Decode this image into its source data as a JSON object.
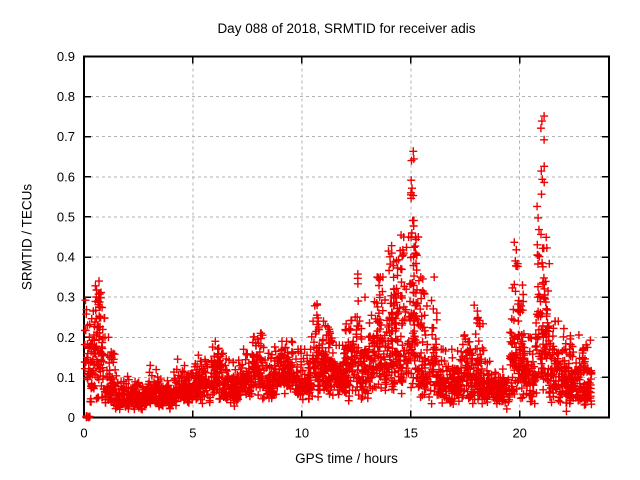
{
  "chart_data": {
    "type": "scatter",
    "title": "Day 088 of 2018, SRMTID for receiver adis",
    "xlabel": "GPS time / hours",
    "ylabel": "SRMTID / TECUs",
    "series_name": "SRMTID",
    "xlim": [
      0,
      24.1
    ],
    "ylim": [
      0,
      0.9
    ],
    "xticks": [
      {
        "v": 0,
        "label": "0"
      },
      {
        "v": 5,
        "label": "5"
      },
      {
        "v": 10,
        "label": "10"
      },
      {
        "v": 15,
        "label": "15"
      },
      {
        "v": 20,
        "label": "20"
      }
    ],
    "yticks": [
      {
        "v": 0.0,
        "label": "0"
      },
      {
        "v": 0.1,
        "label": "0.1"
      },
      {
        "v": 0.2,
        "label": "0.2"
      },
      {
        "v": 0.3,
        "label": "0.3"
      },
      {
        "v": 0.4,
        "label": "0.4"
      },
      {
        "v": 0.5,
        "label": "0.5"
      },
      {
        "v": 0.6,
        "label": "0.6"
      },
      {
        "v": 0.7,
        "label": "0.7"
      },
      {
        "v": 0.8,
        "label": "0.8"
      },
      {
        "v": 0.9,
        "label": "0.9"
      }
    ],
    "grid": {
      "show": true,
      "style": "dashed",
      "color": "#b2b2b2"
    },
    "legend": "none",
    "background": "#ffffff",
    "border_color": "#000000",
    "text_color": "#000000",
    "marker": {
      "glyph": "+",
      "color": "#ee0000",
      "size": 8,
      "stroke_width": 1.4
    },
    "n_points_approx": 2880,
    "seed": 2018088,
    "scatter_profile": {
      "description": "Envelope of the ~2880-point scatter read off the plot: per-interval log-normal bands (x0-x1 hours, median m TECU, log-sigma s, count n, cap ymax) plus discrete spike columns and a solid cluster of zero values at the origin.",
      "segments": [
        {
          "x0": 0.03,
          "x1": 0.35,
          "m": 0.12,
          "s": 0.45,
          "n": 40,
          "ymax": 0.3
        },
        {
          "x0": 0.35,
          "x1": 0.95,
          "m": 0.15,
          "s": 0.5,
          "n": 75,
          "ymax": 0.34
        },
        {
          "x0": 0.95,
          "x1": 1.45,
          "m": 0.08,
          "s": 0.4,
          "n": 60,
          "ymax": 0.2
        },
        {
          "x0": 1.45,
          "x1": 2.9,
          "m": 0.045,
          "s": 0.32,
          "n": 175,
          "ymax": 0.12
        },
        {
          "x0": 2.9,
          "x1": 3.5,
          "m": 0.06,
          "s": 0.3,
          "n": 72,
          "ymax": 0.13
        },
        {
          "x0": 3.5,
          "x1": 4.1,
          "m": 0.055,
          "s": 0.32,
          "n": 72,
          "ymax": 0.13
        },
        {
          "x0": 4.1,
          "x1": 5.0,
          "m": 0.068,
          "s": 0.3,
          "n": 108,
          "ymax": 0.15
        },
        {
          "x0": 5.0,
          "x1": 5.8,
          "m": 0.082,
          "s": 0.32,
          "n": 96,
          "ymax": 0.18
        },
        {
          "x0": 5.8,
          "x1": 6.35,
          "m": 0.095,
          "s": 0.38,
          "n": 66,
          "ymax": 0.19
        },
        {
          "x0": 6.35,
          "x1": 7.1,
          "m": 0.072,
          "s": 0.33,
          "n": 90,
          "ymax": 0.16
        },
        {
          "x0": 7.1,
          "x1": 7.75,
          "m": 0.095,
          "s": 0.3,
          "n": 78,
          "ymax": 0.17
        },
        {
          "x0": 7.75,
          "x1": 8.25,
          "m": 0.115,
          "s": 0.35,
          "n": 60,
          "ymax": 0.21
        },
        {
          "x0": 8.25,
          "x1": 8.75,
          "m": 0.085,
          "s": 0.32,
          "n": 60,
          "ymax": 0.16
        },
        {
          "x0": 8.75,
          "x1": 9.6,
          "m": 0.115,
          "s": 0.3,
          "n": 102,
          "ymax": 0.19
        },
        {
          "x0": 9.6,
          "x1": 10.45,
          "m": 0.085,
          "s": 0.35,
          "n": 102,
          "ymax": 0.17
        },
        {
          "x0": 10.45,
          "x1": 11.45,
          "m": 0.125,
          "s": 0.38,
          "n": 120,
          "ymax": 0.24
        },
        {
          "x0": 11.45,
          "x1": 11.95,
          "m": 0.095,
          "s": 0.32,
          "n": 60,
          "ymax": 0.18
        },
        {
          "x0": 11.95,
          "x1": 12.45,
          "m": 0.125,
          "s": 0.38,
          "n": 60,
          "ymax": 0.25
        },
        {
          "x0": 12.45,
          "x1": 13.15,
          "m": 0.125,
          "s": 0.38,
          "n": 84,
          "ymax": 0.3
        },
        {
          "x0": 13.15,
          "x1": 13.85,
          "m": 0.145,
          "s": 0.4,
          "n": 84,
          "ymax": 0.35
        },
        {
          "x0": 13.85,
          "x1": 14.7,
          "m": 0.18,
          "s": 0.42,
          "n": 102,
          "ymax": 0.42
        },
        {
          "x0": 14.7,
          "x1": 15.35,
          "m": 0.195,
          "s": 0.42,
          "n": 78,
          "ymax": 0.45
        },
        {
          "x0": 15.35,
          "x1": 16.2,
          "m": 0.13,
          "s": 0.45,
          "n": 102,
          "ymax": 0.35
        },
        {
          "x0": 16.2,
          "x1": 17.35,
          "m": 0.082,
          "s": 0.35,
          "n": 138,
          "ymax": 0.17
        },
        {
          "x0": 17.35,
          "x1": 18.35,
          "m": 0.1,
          "s": 0.4,
          "n": 120,
          "ymax": 0.28
        },
        {
          "x0": 18.35,
          "x1": 18.95,
          "m": 0.075,
          "s": 0.32,
          "n": 72,
          "ymax": 0.14
        },
        {
          "x0": 18.95,
          "x1": 19.55,
          "m": 0.065,
          "s": 0.35,
          "n": 72,
          "ymax": 0.13
        },
        {
          "x0": 19.55,
          "x1": 20.3,
          "m": 0.13,
          "s": 0.45,
          "n": 90,
          "ymax": 0.33
        },
        {
          "x0": 20.3,
          "x1": 20.7,
          "m": 0.1,
          "s": 0.38,
          "n": 48,
          "ymax": 0.2
        },
        {
          "x0": 20.7,
          "x1": 21.35,
          "m": 0.17,
          "s": 0.5,
          "n": 78,
          "ymax": 0.55
        },
        {
          "x0": 21.35,
          "x1": 22.1,
          "m": 0.11,
          "s": 0.4,
          "n": 90,
          "ymax": 0.24
        },
        {
          "x0": 22.1,
          "x1": 22.75,
          "m": 0.085,
          "s": 0.42,
          "n": 78,
          "ymax": 0.23
        },
        {
          "x0": 22.75,
          "x1": 23.3,
          "m": 0.075,
          "s": 0.45,
          "n": 66,
          "ymax": 0.2
        }
      ],
      "spikes": [
        {
          "x": 0.62,
          "jit": 0.18,
          "lo": 0.16,
          "hi": 0.33,
          "n": 26
        },
        {
          "x": 6.05,
          "jit": 0.15,
          "lo": 0.1,
          "hi": 0.175,
          "n": 14
        },
        {
          "x": 7.9,
          "jit": 0.15,
          "lo": 0.12,
          "hi": 0.2,
          "n": 12
        },
        {
          "x": 9.05,
          "jit": 0.2,
          "lo": 0.1,
          "hi": 0.17,
          "n": 12
        },
        {
          "x": 10.68,
          "jit": 0.1,
          "lo": 0.14,
          "hi": 0.3,
          "n": 12
        },
        {
          "x": 11.1,
          "jit": 0.2,
          "lo": 0.12,
          "hi": 0.23,
          "n": 12
        },
        {
          "x": 12.05,
          "jit": 0.12,
          "lo": 0.12,
          "hi": 0.24,
          "n": 10
        },
        {
          "x": 12.55,
          "jit": 0.08,
          "lo": 0.15,
          "hi": 0.37,
          "n": 8
        },
        {
          "x": 13.5,
          "jit": 0.12,
          "lo": 0.18,
          "hi": 0.35,
          "n": 12
        },
        {
          "x": 14.2,
          "jit": 0.25,
          "lo": 0.2,
          "hi": 0.44,
          "n": 30
        },
        {
          "x": 14.6,
          "jit": 0.12,
          "lo": 0.3,
          "hi": 0.47,
          "n": 12
        },
        {
          "x": 15.08,
          "jit": 0.09,
          "lo": 0.44,
          "hi": 0.685,
          "n": 14
        },
        {
          "x": 15.15,
          "jit": 0.15,
          "lo": 0.25,
          "hi": 0.45,
          "n": 16
        },
        {
          "x": 15.55,
          "jit": 0.12,
          "lo": 0.18,
          "hi": 0.35,
          "n": 12
        },
        {
          "x": 17.6,
          "jit": 0.15,
          "lo": 0.12,
          "hi": 0.22,
          "n": 10
        },
        {
          "x": 18.05,
          "jit": 0.15,
          "lo": 0.14,
          "hi": 0.28,
          "n": 10
        },
        {
          "x": 19.85,
          "jit": 0.12,
          "lo": 0.15,
          "hi": 0.45,
          "n": 16
        },
        {
          "x": 20.1,
          "jit": 0.15,
          "lo": 0.12,
          "hi": 0.33,
          "n": 14
        },
        {
          "x": 20.95,
          "jit": 0.18,
          "lo": 0.2,
          "hi": 0.55,
          "n": 22
        },
        {
          "x": 21.05,
          "jit": 0.08,
          "lo": 0.55,
          "hi": 0.83,
          "n": 9
        },
        {
          "x": 21.25,
          "jit": 0.12,
          "lo": 0.15,
          "hi": 0.4,
          "n": 10
        },
        {
          "x": 22.35,
          "jit": 0.12,
          "lo": 0.15,
          "hi": 0.28,
          "n": 8
        },
        {
          "x": 22.95,
          "jit": 0.1,
          "lo": 0.1,
          "hi": 0.2,
          "n": 6
        }
      ],
      "origin_cluster": {
        "x0": 0.05,
        "x1": 0.28,
        "y0": 0.0,
        "y1": 0.004,
        "n": 8
      }
    }
  }
}
